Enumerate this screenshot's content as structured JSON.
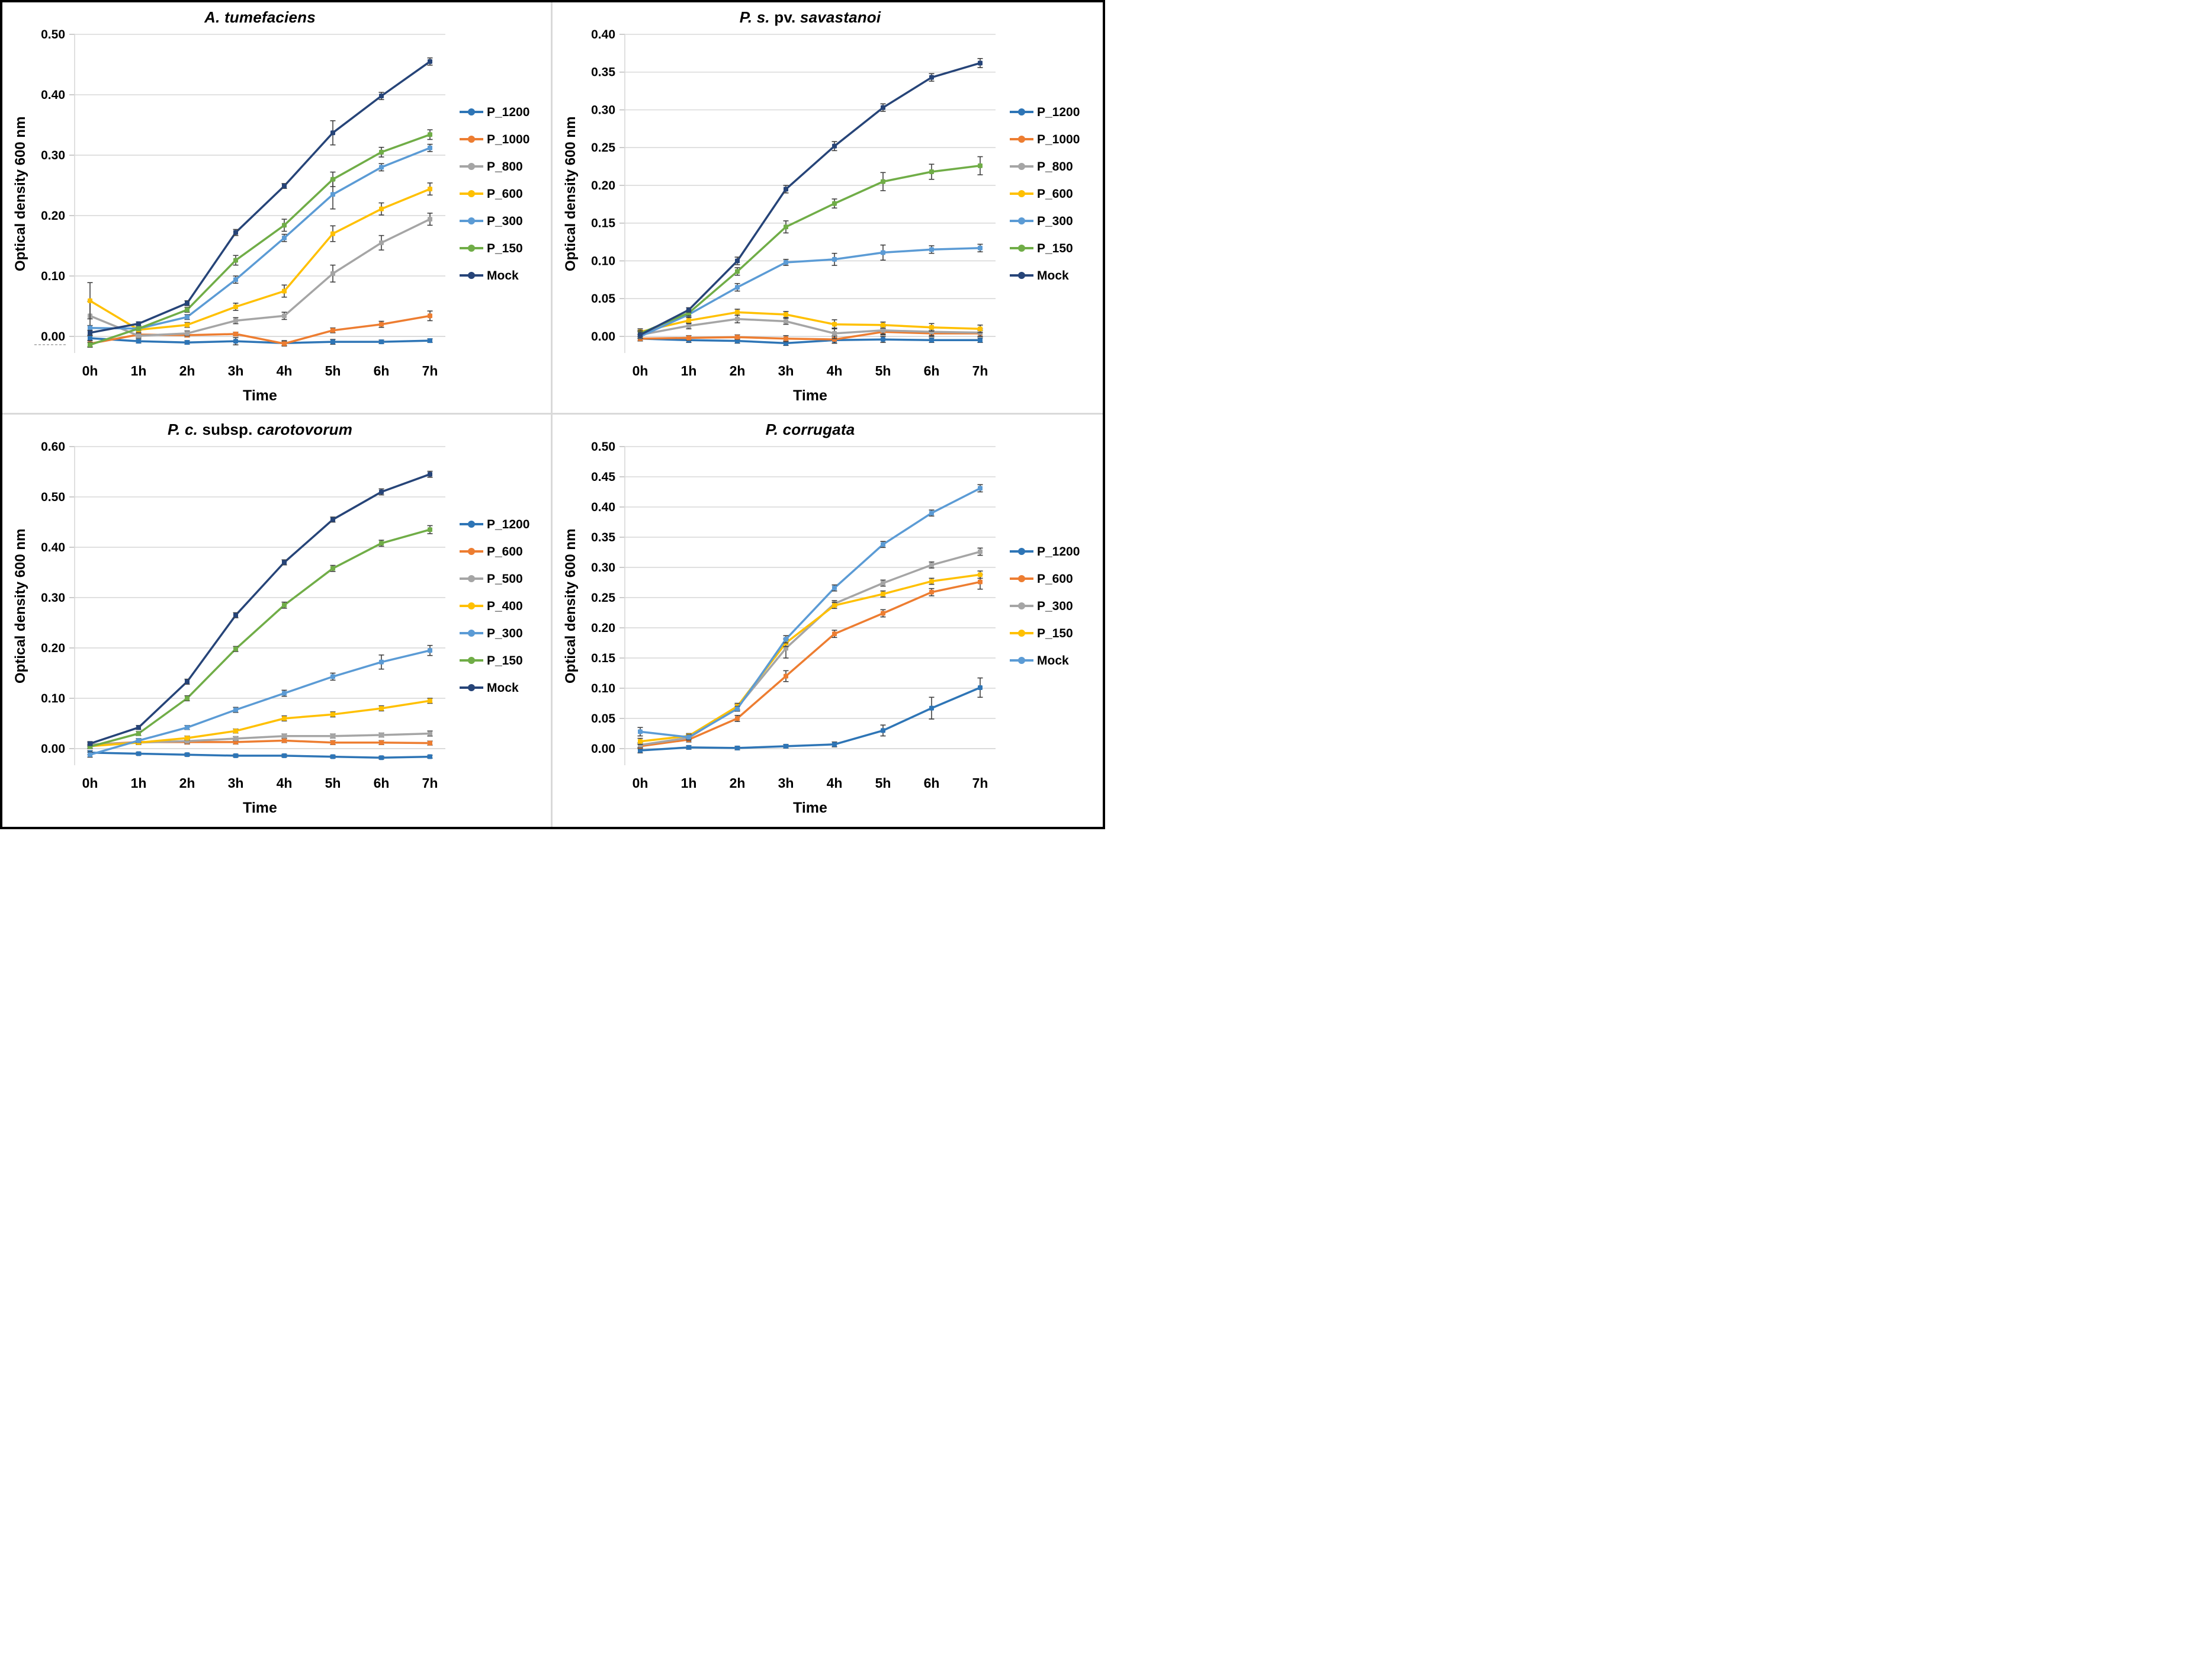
{
  "figure": {
    "ylabel": "Optical density 600 nm",
    "xlabel": "Time",
    "border_color": "#000000",
    "divider_color": "#d9d9d9",
    "gridline_color": "#d9d9d9",
    "error_bar_color": "#404040",
    "background": "#ffffff"
  },
  "chart_data": [
    {
      "type": "line",
      "title": "A. tumefaciens",
      "title_parts": [
        {
          "text": "A. tumefaciens",
          "italic": true
        }
      ],
      "xlabel": "Time",
      "ylabel": "Optical density 600 nm",
      "categories": [
        "0h",
        "1h",
        "2h",
        "3h",
        "4h",
        "5h",
        "6h",
        "7h"
      ],
      "ylim": [
        0.0,
        0.5
      ],
      "ytick_step": 0.1,
      "grid": true,
      "legend_position": "right",
      "series": [
        {
          "name": "P_1200",
          "color": "#2E75B6",
          "values": [
            -0.003,
            -0.008,
            -0.01,
            -0.008,
            -0.011,
            -0.009,
            -0.009,
            -0.007
          ],
          "err": [
            0.004,
            0.003,
            0.003,
            0.006,
            0.004,
            0.004,
            0.003,
            0.003
          ]
        },
        {
          "name": "P_1000",
          "color": "#ED7D31",
          "values": [
            -0.012,
            0.003,
            0.002,
            0.004,
            -0.012,
            0.01,
            0.02,
            0.034
          ],
          "err": [
            0.005,
            0.004,
            0.003,
            0.003,
            0.004,
            0.004,
            0.005,
            0.008
          ]
        },
        {
          "name": "P_800",
          "color": "#A5A5A5",
          "values": [
            0.034,
            0.001,
            0.005,
            0.026,
            0.034,
            0.104,
            0.155,
            0.194
          ],
          "err": [
            0.024,
            0.004,
            0.004,
            0.005,
            0.006,
            0.014,
            0.012,
            0.01
          ]
        },
        {
          "name": "P_600",
          "color": "#FFC000",
          "values": [
            0.059,
            0.011,
            0.019,
            0.049,
            0.075,
            0.17,
            0.211,
            0.244
          ],
          "err": [
            0.03,
            0.004,
            0.004,
            0.006,
            0.01,
            0.013,
            0.01,
            0.01
          ]
        },
        {
          "name": "P_300",
          "color": "#5B9BD5",
          "values": [
            0.014,
            0.013,
            0.032,
            0.094,
            0.163,
            0.235,
            0.28,
            0.312
          ],
          "err": [
            0.004,
            0.003,
            0.004,
            0.006,
            0.006,
            0.024,
            0.006,
            0.006
          ]
        },
        {
          "name": "P_150",
          "color": "#70AD47",
          "values": [
            -0.014,
            0.013,
            0.044,
            0.126,
            0.184,
            0.26,
            0.305,
            0.334
          ],
          "err": [
            0.004,
            0.003,
            0.004,
            0.008,
            0.01,
            0.012,
            0.008,
            0.008
          ]
        },
        {
          "name": "Mock",
          "color": "#264478",
          "values": [
            0.006,
            0.021,
            0.055,
            0.172,
            0.249,
            0.337,
            0.398,
            0.455
          ],
          "err": [
            0.004,
            0.003,
            0.004,
            0.005,
            0.004,
            0.02,
            0.006,
            0.006
          ]
        }
      ]
    },
    {
      "type": "line",
      "title": "P. s. pv. savastanoi",
      "title_parts": [
        {
          "text": "P. s. ",
          "italic": true
        },
        {
          "text": "pv. ",
          "italic": false
        },
        {
          "text": "savastanoi",
          "italic": true
        }
      ],
      "xlabel": "Time",
      "ylabel": "Optical density 600 nm",
      "categories": [
        "0h",
        "1h",
        "2h",
        "3h",
        "4h",
        "5h",
        "6h",
        "7h"
      ],
      "ylim": [
        0.0,
        0.4
      ],
      "ytick_step": 0.05,
      "grid": true,
      "legend_position": "right",
      "series": [
        {
          "name": "P_1200",
          "color": "#2E75B6",
          "values": [
            -0.003,
            -0.005,
            -0.006,
            -0.009,
            -0.005,
            -0.004,
            -0.005,
            -0.005
          ],
          "err": [
            0.003,
            0.003,
            0.003,
            0.003,
            0.004,
            0.004,
            0.003,
            0.003
          ]
        },
        {
          "name": "P_1000",
          "color": "#ED7D31",
          "values": [
            -0.003,
            -0.002,
            -0.001,
            -0.003,
            -0.004,
            0.006,
            0.004,
            0.004
          ],
          "err": [
            0.003,
            0.003,
            0.003,
            0.004,
            0.005,
            0.004,
            0.004,
            0.004
          ]
        },
        {
          "name": "P_800",
          "color": "#A5A5A5",
          "values": [
            0.002,
            0.014,
            0.023,
            0.02,
            0.004,
            0.008,
            0.006,
            0.005
          ],
          "err": [
            0.005,
            0.004,
            0.005,
            0.004,
            0.007,
            0.005,
            0.005,
            0.005
          ]
        },
        {
          "name": "P_600",
          "color": "#FFC000",
          "values": [
            0.006,
            0.021,
            0.032,
            0.029,
            0.016,
            0.015,
            0.012,
            0.01
          ],
          "err": [
            0.004,
            0.004,
            0.004,
            0.004,
            0.006,
            0.004,
            0.005,
            0.005
          ]
        },
        {
          "name": "P_300",
          "color": "#5B9BD5",
          "values": [
            0.0,
            0.029,
            0.065,
            0.098,
            0.102,
            0.111,
            0.115,
            0.117
          ],
          "err": [
            0.003,
            0.004,
            0.005,
            0.004,
            0.008,
            0.01,
            0.005,
            0.005
          ]
        },
        {
          "name": "P_150",
          "color": "#70AD47",
          "values": [
            0.004,
            0.031,
            0.086,
            0.145,
            0.176,
            0.205,
            0.218,
            0.226
          ],
          "err": [
            0.004,
            0.004,
            0.005,
            0.008,
            0.006,
            0.012,
            0.01,
            0.012
          ]
        },
        {
          "name": "Mock",
          "color": "#264478",
          "values": [
            0.002,
            0.035,
            0.1,
            0.195,
            0.252,
            0.303,
            0.343,
            0.362
          ],
          "err": [
            0.004,
            0.003,
            0.005,
            0.005,
            0.006,
            0.005,
            0.005,
            0.006
          ]
        }
      ]
    },
    {
      "type": "line",
      "title": "P. c. subsp. carotovorum",
      "title_parts": [
        {
          "text": "P. c. ",
          "italic": true
        },
        {
          "text": "subsp. ",
          "italic": false
        },
        {
          "text": "carotovorum",
          "italic": true
        }
      ],
      "xlabel": "Time",
      "ylabel": "Optical density 600 nm",
      "categories": [
        "0h",
        "1h",
        "2h",
        "3h",
        "4h",
        "5h",
        "6h",
        "7h"
      ],
      "ylim": [
        0.0,
        0.6
      ],
      "ytick_step": 0.1,
      "grid": true,
      "legend_position": "right",
      "series": [
        {
          "name": "P_1200",
          "color": "#2E75B6",
          "values": [
            -0.008,
            -0.01,
            -0.012,
            -0.014,
            -0.014,
            -0.016,
            -0.018,
            -0.016
          ],
          "err": [
            0.004,
            0.003,
            0.003,
            0.003,
            0.003,
            0.003,
            0.003,
            0.003
          ]
        },
        {
          "name": "P_600",
          "color": "#ED7D31",
          "values": [
            0.008,
            0.013,
            0.013,
            0.013,
            0.016,
            0.012,
            0.012,
            0.011
          ],
          "err": [
            0.004,
            0.004,
            0.004,
            0.004,
            0.004,
            0.004,
            0.004,
            0.004
          ]
        },
        {
          "name": "P_500",
          "color": "#A5A5A5",
          "values": [
            0.008,
            0.012,
            0.015,
            0.02,
            0.025,
            0.025,
            0.027,
            0.03
          ],
          "err": [
            0.004,
            0.004,
            0.004,
            0.004,
            0.004,
            0.004,
            0.004,
            0.005
          ]
        },
        {
          "name": "P_400",
          "color": "#FFC000",
          "values": [
            0.005,
            0.012,
            0.021,
            0.035,
            0.06,
            0.068,
            0.08,
            0.095
          ],
          "err": [
            0.004,
            0.004,
            0.004,
            0.004,
            0.005,
            0.005,
            0.005,
            0.005
          ]
        },
        {
          "name": "P_300",
          "color": "#5B9BD5",
          "values": [
            -0.012,
            0.016,
            0.042,
            0.077,
            0.11,
            0.143,
            0.172,
            0.195
          ],
          "err": [
            0.005,
            0.004,
            0.004,
            0.005,
            0.006,
            0.007,
            0.014,
            0.01
          ]
        },
        {
          "name": "P_150",
          "color": "#70AD47",
          "values": [
            0.004,
            0.03,
            0.1,
            0.198,
            0.285,
            0.358,
            0.408,
            0.435
          ],
          "err": [
            0.004,
            0.004,
            0.005,
            0.005,
            0.006,
            0.006,
            0.006,
            0.008
          ]
        },
        {
          "name": "Mock",
          "color": "#264478",
          "values": [
            0.01,
            0.042,
            0.133,
            0.265,
            0.37,
            0.455,
            0.51,
            0.545
          ],
          "err": [
            0.004,
            0.004,
            0.005,
            0.005,
            0.005,
            0.005,
            0.006,
            0.006
          ]
        }
      ]
    },
    {
      "type": "line",
      "title": "P. corrugata",
      "title_parts": [
        {
          "text": "P. corrugata",
          "italic": true
        }
      ],
      "xlabel": "Time",
      "ylabel": "Optical density 600 nm",
      "categories": [
        "0h",
        "1h",
        "2h",
        "3h",
        "4h",
        "5h",
        "6h",
        "7h"
      ],
      "ylim": [
        0.0,
        0.5
      ],
      "ytick_step": 0.05,
      "grid": true,
      "legend_position": "right",
      "series": [
        {
          "name": "P_1200",
          "color": "#2E75B6",
          "values": [
            -0.003,
            0.002,
            0.001,
            0.004,
            0.007,
            0.03,
            0.067,
            0.101
          ],
          "err": [
            0.004,
            0.003,
            0.003,
            0.003,
            0.004,
            0.009,
            0.018,
            0.016
          ]
        },
        {
          "name": "P_600",
          "color": "#ED7D31",
          "values": [
            0.004,
            0.015,
            0.05,
            0.12,
            0.19,
            0.224,
            0.259,
            0.276
          ],
          "err": [
            0.004,
            0.004,
            0.005,
            0.009,
            0.006,
            0.006,
            0.006,
            0.012
          ]
        },
        {
          "name": "P_300",
          "color": "#A5A5A5",
          "values": [
            0.006,
            0.018,
            0.068,
            0.166,
            0.24,
            0.274,
            0.304,
            0.326
          ],
          "err": [
            0.004,
            0.004,
            0.005,
            0.016,
            0.005,
            0.005,
            0.005,
            0.006
          ]
        },
        {
          "name": "P_150",
          "color": "#FFC000",
          "values": [
            0.012,
            0.021,
            0.07,
            0.175,
            0.237,
            0.256,
            0.277,
            0.288
          ],
          "err": [
            0.005,
            0.004,
            0.005,
            0.006,
            0.005,
            0.005,
            0.005,
            0.006
          ]
        },
        {
          "name": "Mock",
          "color": "#5B9BD5",
          "values": [
            0.028,
            0.019,
            0.066,
            0.181,
            0.266,
            0.338,
            0.39,
            0.431
          ],
          "err": [
            0.007,
            0.004,
            0.004,
            0.006,
            0.005,
            0.005,
            0.005,
            0.006
          ]
        }
      ]
    }
  ]
}
